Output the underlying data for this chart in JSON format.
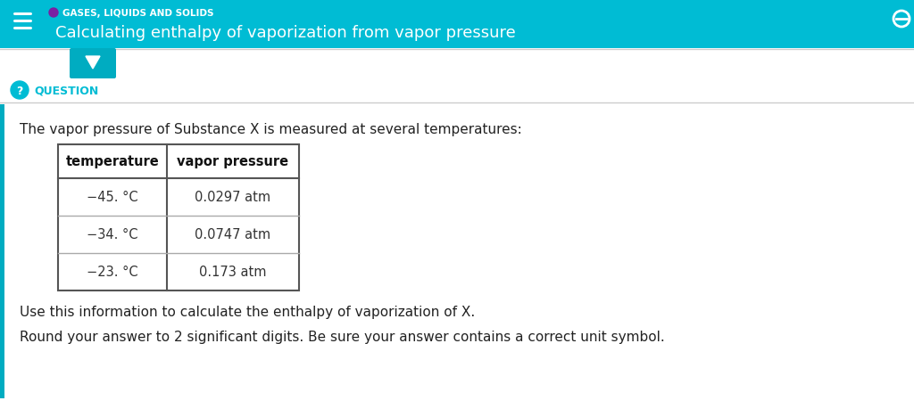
{
  "header_bg_color": "#00BCD4",
  "header_text_color": "#FFFFFF",
  "header_small_text": "GASES, LIQUIDS AND SOLIDS",
  "header_title": "Calculating enthalpy of vaporization from vapor pressure",
  "header_dot_color": "#7B1FA2",
  "page_bg_color": "#FFFFFF",
  "question_label": "QUESTION",
  "question_label_color": "#00BCD4",
  "intro_text": "The vapor pressure of Substance X is measured at several temperatures:",
  "table_headers": [
    "temperature",
    "vapor pressure"
  ],
  "table_rows": [
    [
      "−45. °C",
      "0.0297 atm"
    ],
    [
      "−34. °C",
      "0.0747 atm"
    ],
    [
      "−23. °C",
      "0.173 atm"
    ]
  ],
  "footer_text1": "Use this information to calculate the enthalpy of vaporization of X.",
  "footer_text2": "Round your answer to 2 significant digits. Be sure your answer contains a correct unit symbol.",
  "body_text_color": "#222222",
  "body_font_size": 11,
  "separator_color": "#CCCCCC",
  "question_icon_color": "#00BCD4",
  "hamburger_color": "#FFFFFF",
  "teal_button_color": "#00ACC1",
  "table_border_color": "#555555",
  "table_row_sep_color": "#AAAAAA",
  "accent_bar_color": "#00ACC1"
}
